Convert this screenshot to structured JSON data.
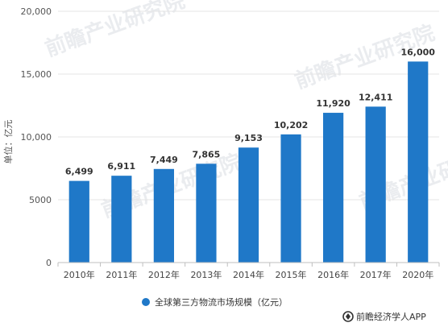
{
  "chart_data": {
    "type": "bar",
    "categories": [
      "2010年",
      "2011年",
      "2012年",
      "2013年",
      "2014年",
      "2015年",
      "2016年",
      "2017年",
      "2020年"
    ],
    "series": [
      {
        "name": "全球第三方物流市场规模（亿元）",
        "values": [
          6499,
          6911,
          7449,
          7865,
          9153,
          10202,
          11920,
          12411,
          16000
        ],
        "data_labels": [
          "6,499",
          "6,911",
          "7,449",
          "7,865",
          "9,153",
          "10,202",
          "11,920",
          "12,411",
          "16,000"
        ]
      }
    ],
    "ylabel": "单位：亿元",
    "ylim": [
      0,
      20000
    ],
    "yticks": [
      0,
      5000,
      10000,
      15000,
      20000
    ],
    "ytick_labels": [
      "0",
      "5000",
      "10,000",
      "15,000",
      "20,000"
    ],
    "grid": true,
    "legend_position": "bottom",
    "bar_color": "#1f78c8"
  },
  "watermark": {
    "text": "前瞻产业研究院",
    "logo_text": "前瞻经济学人APP",
    "logo_icon": "qianzhan-logo-icon"
  }
}
